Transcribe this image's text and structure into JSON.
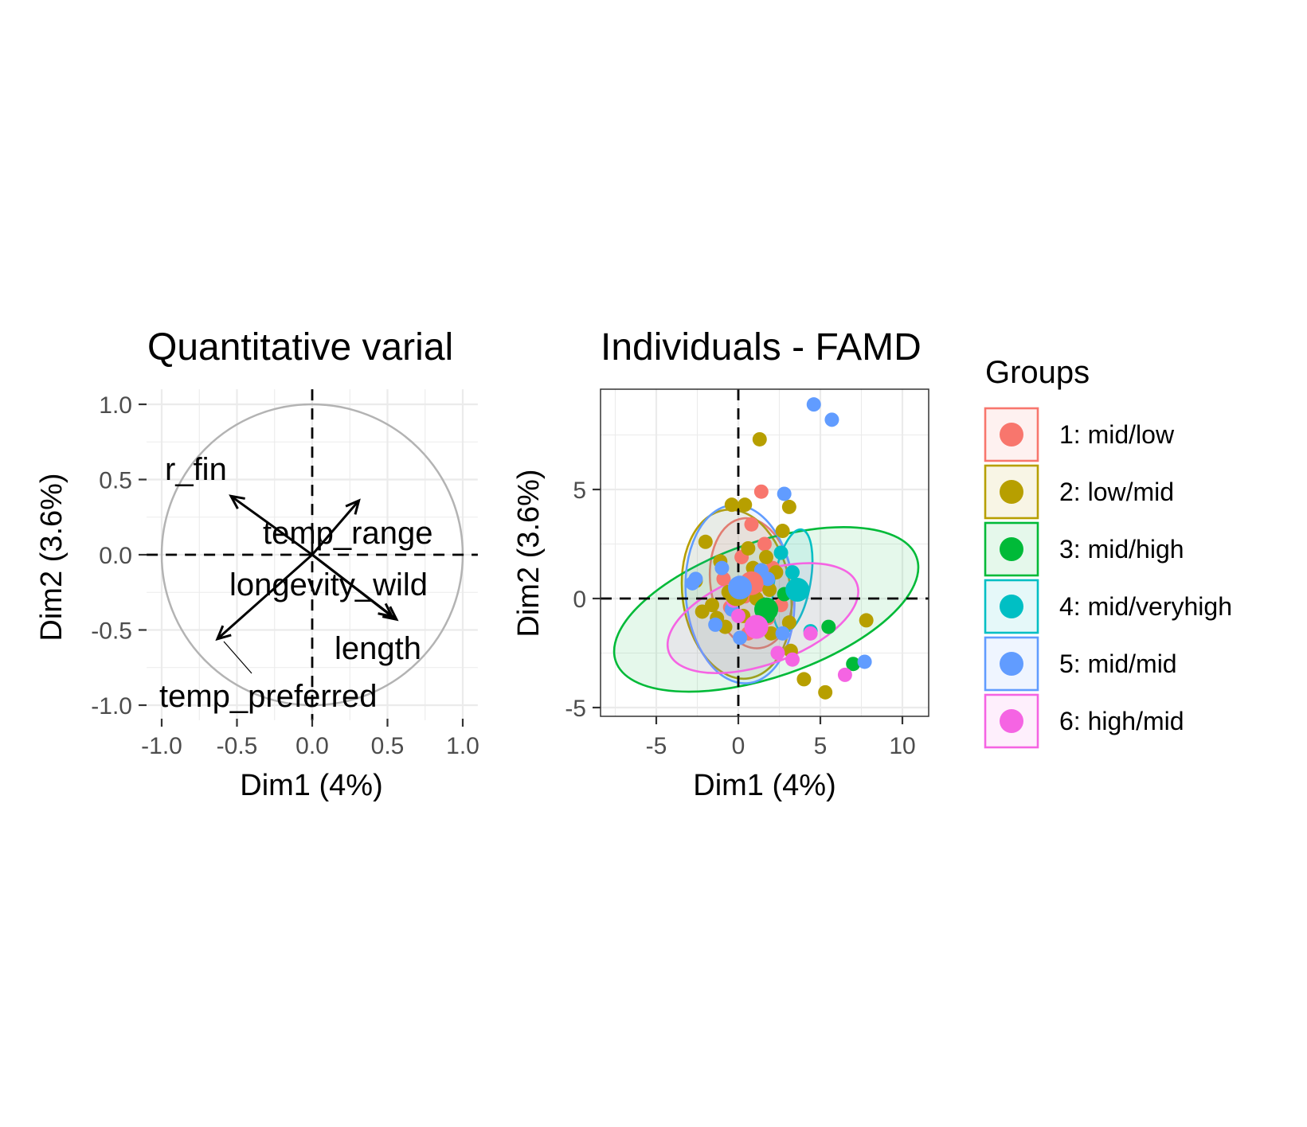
{
  "chart_data": [
    {
      "type": "variables-correlation-circle",
      "title": "Quantitative varial",
      "xlabel": "Dim1 (4%)",
      "ylabel": "Dim2 (3.6%)",
      "xlim": [
        -1.1,
        1.1
      ],
      "ylim": [
        -1.1,
        1.1
      ],
      "xticks": [
        "-1.0",
        "-0.5",
        "0.0",
        "0.5",
        "1.0"
      ],
      "yticks": [
        "-1.0",
        "-0.5",
        "0.0",
        "0.5",
        "1.0"
      ],
      "grid": true,
      "circle": {
        "radius": 1.0,
        "color": "#b3b3b3"
      },
      "arrows": [
        {
          "label": "r_fin",
          "x": -0.54,
          "y": 0.39
        },
        {
          "label": "temp_range",
          "x": 0.31,
          "y": 0.36
        },
        {
          "label": "longevity_wild",
          "x": 0.53,
          "y": -0.41
        },
        {
          "label": "length",
          "x": 0.56,
          "y": -0.43
        },
        {
          "label": "temp_preferred",
          "x": -0.63,
          "y": -0.56
        }
      ]
    },
    {
      "type": "scatter",
      "title": "Individuals - FAMD",
      "xlabel": "Dim1 (4%)",
      "ylabel": "Dim2 (3.6%)",
      "xlim": [
        -8.2,
        11.8
      ],
      "ylim": [
        -5.5,
        9.5
      ],
      "xticks": [
        "-5",
        "0",
        "5",
        "10"
      ],
      "yticks": [
        "-5",
        "0",
        "5"
      ],
      "grid": true,
      "legend": {
        "title": "Groups",
        "placement": "right"
      },
      "groups": [
        {
          "name": "1: mid/low",
          "color": "#F8766D",
          "points": [
            [
              1.4,
              4.9
            ],
            [
              0.8,
              3.4
            ],
            [
              1.6,
              2.5
            ],
            [
              0.2,
              1.9
            ],
            [
              2.1,
              1.4
            ],
            [
              1.2,
              0.6
            ],
            [
              0.4,
              0.1
            ],
            [
              -0.5,
              -0.4
            ],
            [
              1.8,
              -0.9
            ],
            [
              0.6,
              -1.6
            ],
            [
              -0.9,
              0.9
            ],
            [
              2.6,
              -0.3
            ]
          ],
          "centroid": [
            0.8,
            0.7
          ],
          "ellipse": {
            "cx": 0.8,
            "cy": 0.7,
            "rx": 2.5,
            "ry": 3.0,
            "angle": -8
          }
        },
        {
          "name": "2: low/mid",
          "color": "#B79F00",
          "points": [
            [
              1.3,
              7.3
            ],
            [
              -0.4,
              4.3
            ],
            [
              0.4,
              4.3
            ],
            [
              3.1,
              4.2
            ],
            [
              2.7,
              3.1
            ],
            [
              -2.0,
              2.6
            ],
            [
              0.6,
              2.3
            ],
            [
              1.7,
              1.9
            ],
            [
              -1.1,
              1.7
            ],
            [
              2.3,
              1.2
            ],
            [
              -2.6,
              0.8
            ],
            [
              -0.6,
              0.3
            ],
            [
              1.1,
              0.0
            ],
            [
              -1.6,
              -0.3
            ],
            [
              0.3,
              -0.8
            ],
            [
              -0.8,
              -1.3
            ],
            [
              2.0,
              -1.6
            ],
            [
              3.1,
              -1.1
            ],
            [
              7.8,
              -1.0
            ],
            [
              3.2,
              -2.4
            ],
            [
              4.0,
              -3.7
            ],
            [
              5.3,
              -4.3
            ],
            [
              -1.3,
              -0.9
            ],
            [
              0.9,
              1.4
            ],
            [
              1.9,
              0.4
            ],
            [
              -2.2,
              -0.6
            ]
          ],
          "centroid": [
            -0.1,
            0.2
          ],
          "ellipse": {
            "cx": -0.1,
            "cy": 0.2,
            "rx": 3.3,
            "ry": 3.9,
            "angle": -8
          }
        },
        {
          "name": "3: mid/high",
          "color": "#00BA38",
          "points": [
            [
              5.5,
              -1.3
            ],
            [
              7.0,
              -3.0
            ],
            [
              1.8,
              -0.8
            ],
            [
              2.8,
              0.2
            ],
            [
              3.5,
              0.5
            ]
          ],
          "centroid": [
            1.7,
            -0.5
          ],
          "ellipse": {
            "cx": 1.7,
            "cy": -0.5,
            "rx": 9.7,
            "ry": 3.1,
            "angle": -19
          }
        },
        {
          "name": "4: mid/veryhigh",
          "color": "#00BFC4",
          "points": [
            [
              4.4,
              -1.5
            ],
            [
              3.8,
              0.5
            ],
            [
              3.3,
              1.2
            ],
            [
              2.6,
              2.1
            ]
          ],
          "centroid": [
            3.6,
            0.4
          ],
          "ellipse": {
            "cx": 3.3,
            "cy": 0.8,
            "rx": 1.1,
            "ry": 2.4,
            "angle": 10
          }
        },
        {
          "name": "5: mid/mid",
          "color": "#619CFF",
          "points": [
            [
              4.6,
              8.9
            ],
            [
              5.7,
              8.2
            ],
            [
              2.8,
              4.8
            ],
            [
              7.7,
              -2.9
            ],
            [
              2.7,
              -1.6
            ],
            [
              -0.4,
              -0.5
            ],
            [
              -2.6,
              0.9
            ],
            [
              -1.0,
              1.4
            ],
            [
              1.4,
              1.3
            ],
            [
              2.0,
              -0.5
            ],
            [
              0.6,
              0.6
            ],
            [
              -1.4,
              -1.2
            ],
            [
              1.8,
              0.9
            ],
            [
              0.1,
              -1.8
            ],
            [
              -2.8,
              0.7
            ]
          ],
          "centroid": [
            0.1,
            0.5
          ],
          "ellipse": {
            "cx": 0.1,
            "cy": 0.2,
            "rx": 3.3,
            "ry": 4.1,
            "angle": -5
          }
        },
        {
          "name": "6: high/mid",
          "color": "#F564E3",
          "points": [
            [
              6.5,
              -3.5
            ],
            [
              4.4,
              -1.6
            ],
            [
              1.0,
              -1.3
            ],
            [
              2.4,
              -2.5
            ],
            [
              0.0,
              -0.8
            ],
            [
              3.3,
              -2.8
            ],
            [
              -0.3,
              -0.1
            ]
          ],
          "centroid": [
            1.1,
            -1.3
          ],
          "ellipse": {
            "cx": 1.5,
            "cy": -0.9,
            "rx": 6.1,
            "ry": 2.1,
            "angle": -20
          }
        }
      ]
    }
  ]
}
